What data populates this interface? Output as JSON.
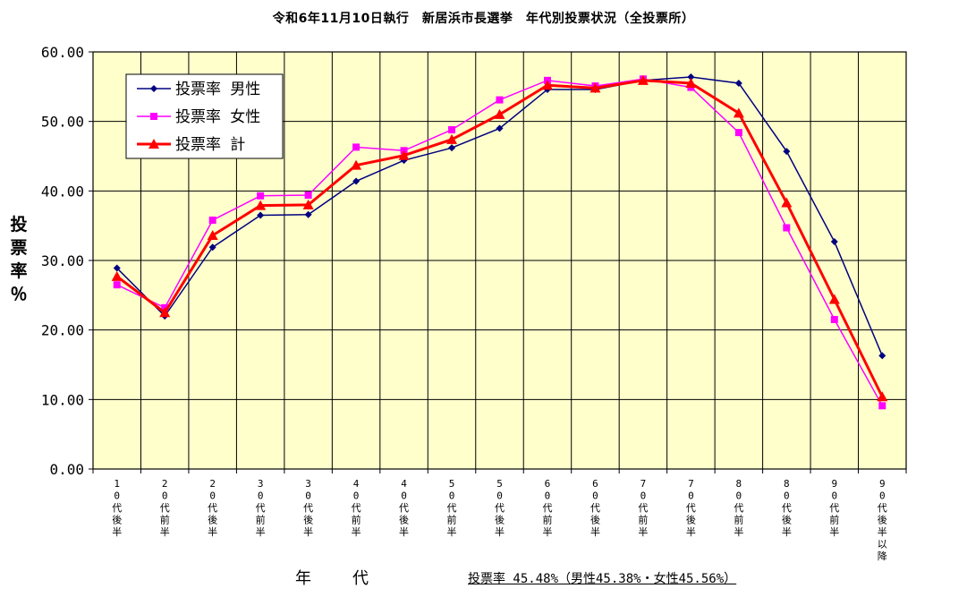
{
  "chart_data": {
    "type": "line",
    "title": "令和6年11月10日執行　新居浜市長選挙　年代別投票状況（全投票所）",
    "ylabel": "投票率％",
    "xlabel": "年　代",
    "ylim": [
      0,
      60
    ],
    "yticks": [
      "0.00",
      "10.00",
      "20.00",
      "30.00",
      "40.00",
      "50.00",
      "60.00"
    ],
    "grid": true,
    "legend_position": "top-left",
    "categories": [
      "10代後半",
      "20代前半",
      "20代後半",
      "30代前半",
      "30代後半",
      "40代前半",
      "40代後半",
      "50代前半",
      "50代後半",
      "60代前半",
      "60代後半",
      "70代前半",
      "70代後半",
      "80代前半",
      "80代後半",
      "90代前半",
      "90代後半以降"
    ],
    "series": [
      {
        "name": "投票率 男性",
        "color": "#000080",
        "marker": "diamond",
        "values": [
          28.9,
          22.0,
          31.9,
          36.5,
          36.6,
          41.4,
          44.4,
          46.2,
          49.0,
          54.6,
          54.6,
          55.9,
          56.4,
          55.5,
          45.7,
          32.7,
          16.3
        ]
      },
      {
        "name": "投票率 女性",
        "color": "#ff00ff",
        "marker": "square",
        "values": [
          26.5,
          23.2,
          35.8,
          39.3,
          39.4,
          46.3,
          45.8,
          48.8,
          53.1,
          55.9,
          55.1,
          56.1,
          54.9,
          48.4,
          34.7,
          21.5,
          9.1
        ]
      },
      {
        "name": "投票率 計",
        "color": "#ff0000",
        "marker": "triangle",
        "values": [
          27.7,
          22.5,
          33.6,
          37.9,
          38.0,
          43.7,
          45.1,
          47.4,
          51.0,
          55.2,
          54.8,
          55.9,
          55.5,
          51.2,
          38.3,
          24.4,
          10.4
        ]
      }
    ],
    "annotation": "投票率 45.48%（男性45.38%・女性45.56%）"
  },
  "colors": {
    "plot_background": "#ffffcc"
  }
}
